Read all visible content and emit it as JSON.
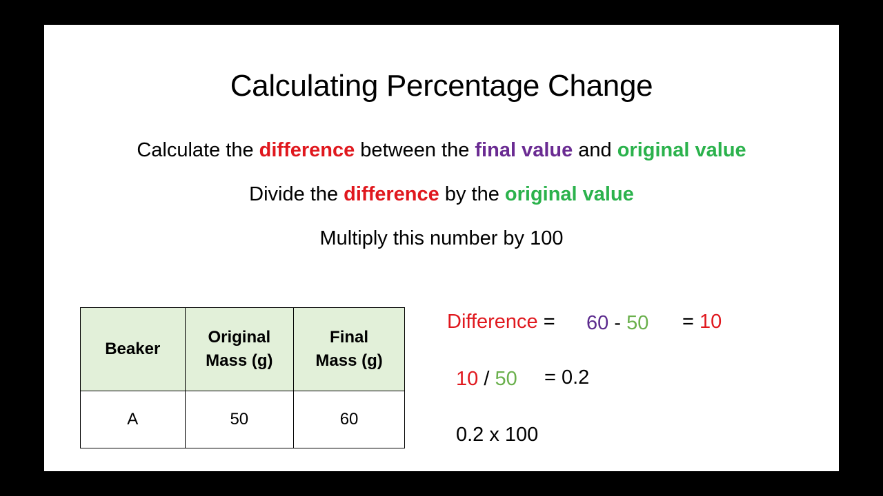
{
  "title": "Calculating Percentage Change",
  "steps": {
    "step1": {
      "a": "Calculate the ",
      "b": "difference",
      "c": " between the ",
      "d": "final value",
      "e": " and ",
      "f": "original value"
    },
    "step2": {
      "a": "Divide the ",
      "b": "difference",
      "c": " by the ",
      "d": "original value"
    },
    "step3": "Multiply this number by 100"
  },
  "table": {
    "headers": {
      "beaker": "Beaker",
      "original_1": "Original",
      "original_2": "Mass (g)",
      "final_1": "Final",
      "final_2": "Mass (g)"
    },
    "rows": [
      {
        "beaker": "A",
        "original": "50",
        "final": "60"
      }
    ]
  },
  "calc": {
    "difference_label": "Difference",
    "equals_sign": "=",
    "final_val": "60",
    "minus": "-",
    "original_val": "50",
    "result_equals": "=",
    "result_val": "10",
    "div_num": "10",
    "div_sign": "/",
    "div_den": "50",
    "div_result": "= 0.2",
    "mult_line": "0.2 x 100"
  },
  "colors": {
    "red": "#e0181e",
    "purple": "#6a2b92",
    "green": "#2bb24c",
    "table_header_bg": "#e2f0d9"
  }
}
